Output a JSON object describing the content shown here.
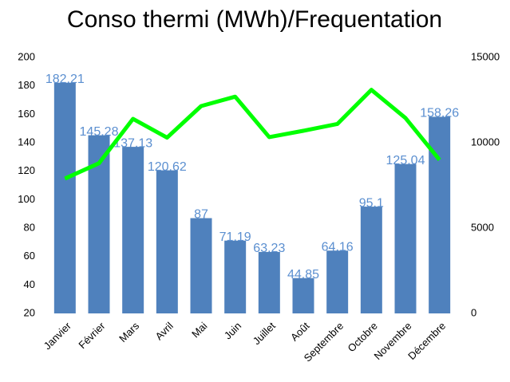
{
  "chart_data": {
    "type": "bar",
    "title": "Conso thermi (MWh)/Frequentation",
    "categories": [
      "Janvier",
      "Février",
      "Mars",
      "Avril",
      "Mai",
      "Juin",
      "Juillet",
      "Août",
      "Septembre",
      "Octobre",
      "Novembre",
      "Décembre"
    ],
    "series": [
      {
        "type": "bar",
        "color": "#4f81bd",
        "values": [
          182.21,
          145.28,
          137.13,
          120.62,
          87,
          71.19,
          63.23,
          44.85,
          64.16,
          95.1,
          125.04,
          158.26
        ]
      },
      {
        "type": "line",
        "axis": "y2",
        "color": "#00ff00",
        "values": [
          7900,
          8800,
          11400,
          10300,
          12150,
          12700,
          10330,
          10700,
          11100,
          13100,
          11450,
          9000
        ]
      }
    ],
    "ylim": [
      20,
      200
    ],
    "yticks": [
      20,
      40,
      60,
      80,
      100,
      120,
      140,
      160,
      180,
      200
    ],
    "y2lim": [
      0,
      15000
    ],
    "y2ticks": [
      0,
      5000,
      10000,
      15000
    ]
  }
}
